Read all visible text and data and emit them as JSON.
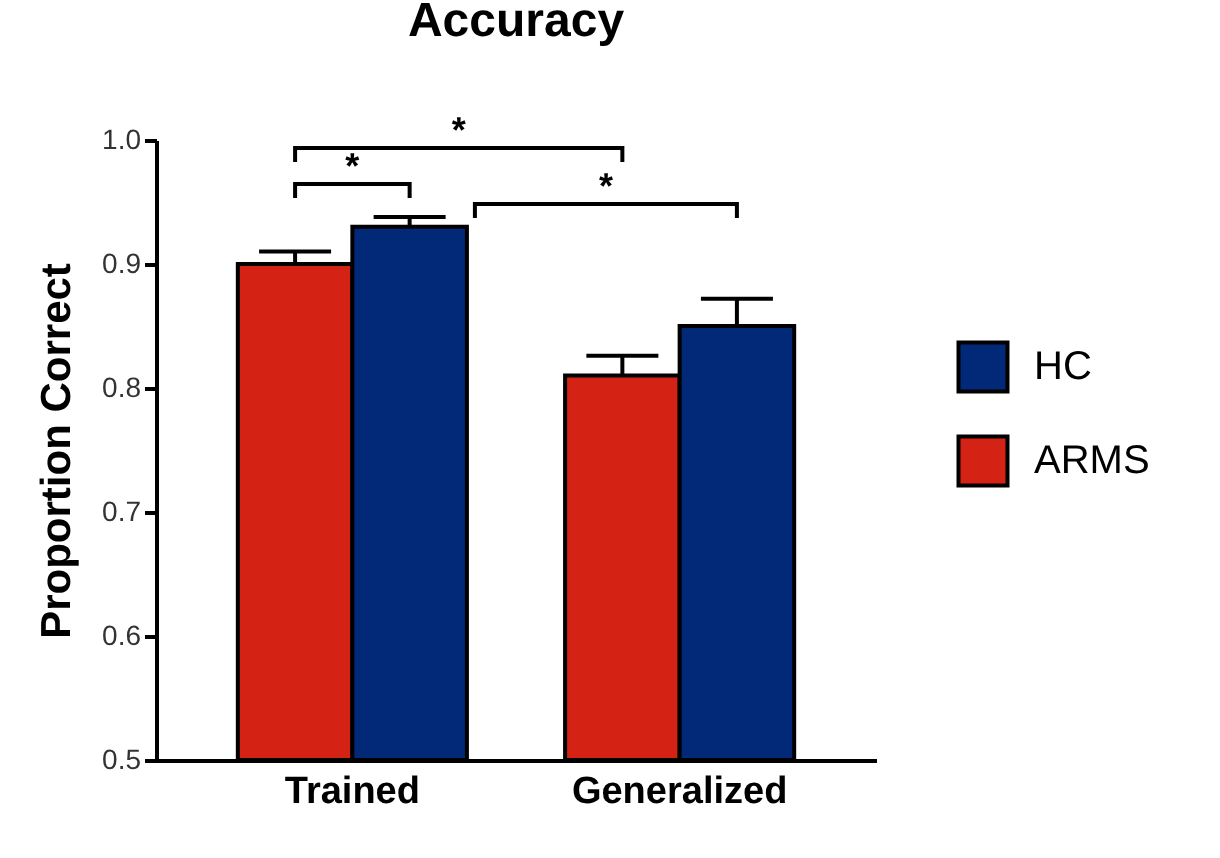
{
  "chart_data": {
    "type": "bar",
    "title": "Accuracy",
    "ylabel": "Proportion Correct",
    "categories": [
      "Trained",
      "Generalized"
    ],
    "series": [
      {
        "name": "ARMS",
        "color": "#d42215",
        "values": [
          0.9,
          0.81
        ],
        "errors": [
          0.01,
          0.016
        ]
      },
      {
        "name": "HC",
        "color": "#022878",
        "values": [
          0.93,
          0.85
        ],
        "errors": [
          0.008,
          0.022
        ]
      }
    ],
    "ylim": [
      0.5,
      1.0
    ],
    "yticks": [
      0.5,
      0.6,
      0.7,
      0.8,
      0.9,
      {
        "value": 1.0,
        "label": "1.0"
      }
    ],
    "legend": "right",
    "annotations": [
      "*",
      "*",
      "*"
    ]
  }
}
